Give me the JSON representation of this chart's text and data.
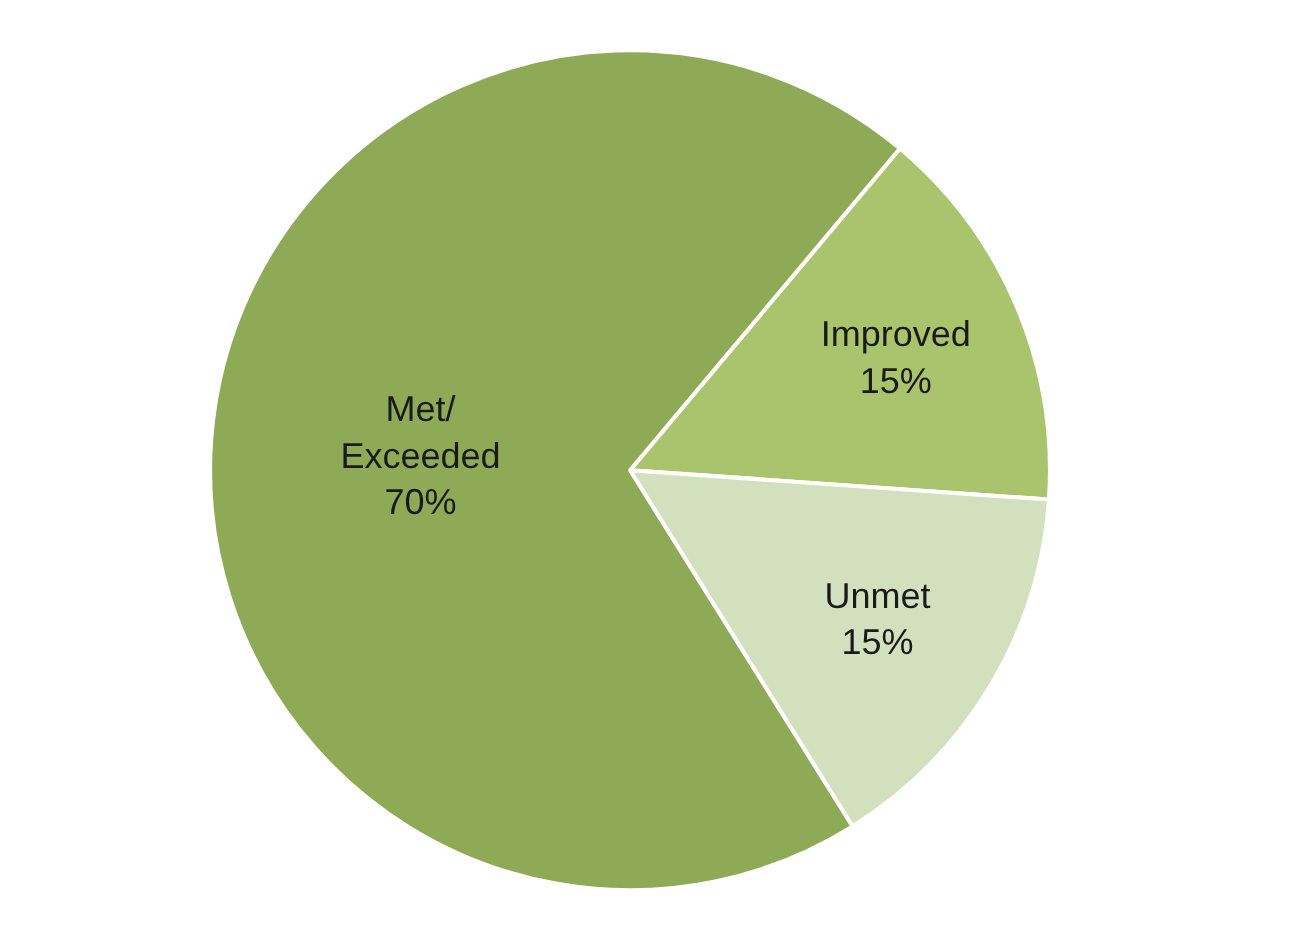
{
  "chart_data": {
    "type": "pie",
    "categories": [
      "Improved",
      "Unmet",
      "Met/Exceeded"
    ],
    "values": [
      15,
      15,
      70
    ],
    "value_labels": [
      "15%",
      "15%",
      "70%"
    ],
    "colors": [
      "#a9c46c",
      "#d3e0bd",
      "#8faa57"
    ],
    "legend": false
  }
}
